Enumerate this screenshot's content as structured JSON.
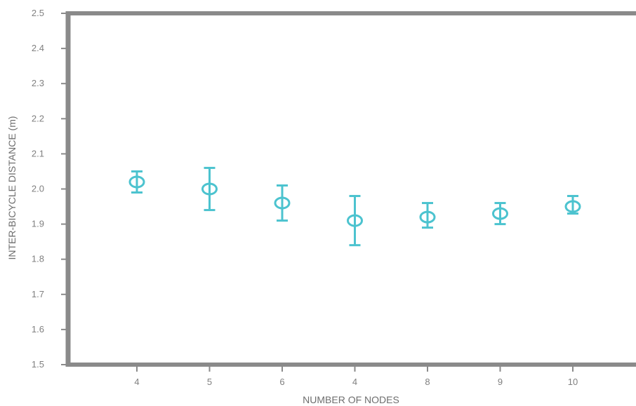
{
  "chart_data": {
    "type": "scatter",
    "title": "",
    "xlabel": "NUMBER OF NODES",
    "ylabel": "INTER-BICYCLE DISTANCE (m)",
    "categories": [
      "4",
      "5",
      "6",
      "4",
      "8",
      "9",
      "10"
    ],
    "series": [
      {
        "values": [
          2.02,
          2.0,
          1.96,
          1.91,
          1.92,
          1.93,
          1.95
        ],
        "error_low": [
          1.99,
          1.94,
          1.91,
          1.84,
          1.89,
          1.9,
          1.93
        ],
        "error_high": [
          2.05,
          2.06,
          2.01,
          1.98,
          1.96,
          1.96,
          1.98
        ]
      }
    ],
    "ylim": [
      1.5,
      2.5
    ],
    "yticks": [
      "1.5",
      "1.6",
      "1.7",
      "1.8",
      "1.9",
      "2.0",
      "2.1",
      "2.2",
      "2.3",
      "2.4",
      "2.5"
    ],
    "grid": false,
    "colors": {
      "marker": "#4cc3cf",
      "axis": "#8a8a8a",
      "tick_text": "#808080"
    }
  }
}
